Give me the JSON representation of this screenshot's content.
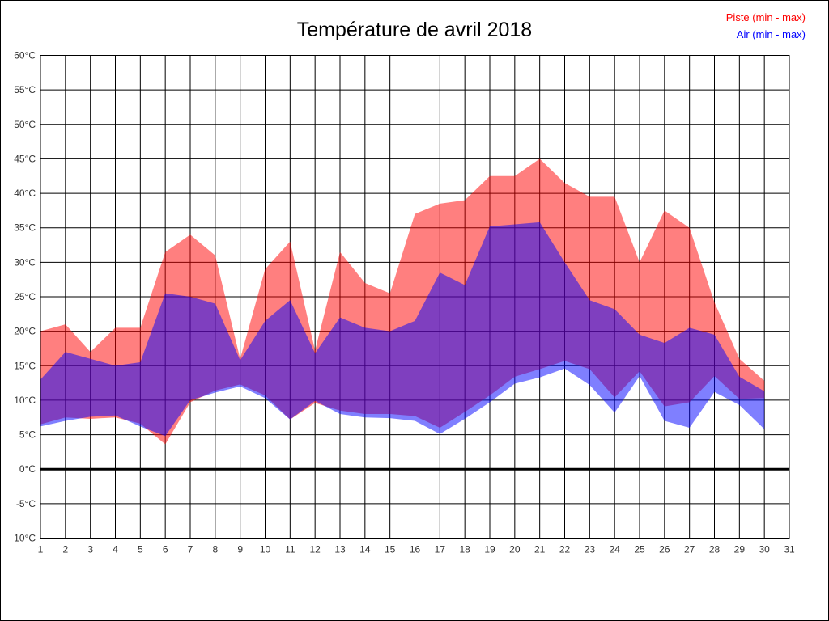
{
  "page": {
    "title": "Température de avril 2018"
  },
  "legend": {
    "piste_label": "Piste (min - max)",
    "air_label": "Air (min - max)",
    "piste_color": "#ff0000",
    "air_color": "#0000ff"
  },
  "chart_data": {
    "type": "area",
    "subtype": "min-max-bands",
    "title": "Température de avril 2018",
    "xlabel": "",
    "ylabel": "",
    "unit": "°C",
    "xlim": [
      1,
      31
    ],
    "ylim": [
      -10,
      60
    ],
    "grid": true,
    "zero_line_bold": true,
    "x_tick_labels": [
      "1",
      "2",
      "3",
      "4",
      "5",
      "6",
      "7",
      "8",
      "9",
      "10",
      "11",
      "12",
      "13",
      "14",
      "15",
      "16",
      "17",
      "18",
      "19",
      "20",
      "21",
      "22",
      "23",
      "24",
      "25",
      "26",
      "27",
      "28",
      "29",
      "30",
      "31"
    ],
    "y_tick_labels": [
      "-10°C",
      "-5°C",
      "0°C",
      "5°C",
      "10°C",
      "15°C",
      "20°C",
      "25°C",
      "30°C",
      "35°C",
      "40°C",
      "45°C",
      "50°C",
      "55°C",
      "60°C"
    ],
    "y_ticks": [
      -10,
      -5,
      0,
      5,
      10,
      15,
      20,
      25,
      30,
      35,
      40,
      45,
      50,
      55,
      60
    ],
    "days": [
      1,
      2,
      3,
      4,
      5,
      6,
      7,
      8,
      9,
      10,
      11,
      12,
      13,
      14,
      15,
      16,
      17,
      18,
      19,
      20,
      21,
      22,
      23,
      24,
      25,
      26,
      27,
      28,
      29,
      30
    ],
    "series": [
      {
        "name": "Piste (min - max)",
        "color": "#ff0000",
        "fill_opacity": 0.5,
        "min": [
          6.5,
          7.5,
          7.3,
          7.5,
          6.6,
          3.6,
          9.7,
          11.4,
          12.3,
          10.7,
          7.2,
          9.6,
          8.5,
          8.0,
          8.0,
          7.7,
          6.0,
          8.3,
          10.7,
          13.4,
          14.5,
          15.7,
          14.5,
          10.4,
          14.2,
          9.1,
          9.7,
          13.5,
          10.2,
          10.3
        ],
        "max": [
          20,
          21,
          17,
          20.5,
          20.5,
          31.5,
          34,
          31,
          16,
          29,
          33,
          17.2,
          31.5,
          27,
          25.5,
          37,
          38.5,
          39,
          42.5,
          42.5,
          45,
          41.5,
          39.5,
          39.5,
          30,
          37.5,
          35,
          24.2,
          16,
          12.8
        ]
      },
      {
        "name": "Air (min - max)",
        "color": "#0000ff",
        "fill_opacity": 0.5,
        "min": [
          6.2,
          7.0,
          7.6,
          7.8,
          6.2,
          4.8,
          10.0,
          11.1,
          12.0,
          10.3,
          7.2,
          9.9,
          8.0,
          7.5,
          7.4,
          7.0,
          5.1,
          7.3,
          9.7,
          12.4,
          13.3,
          14.6,
          12.2,
          8.2,
          13.5,
          7.0,
          6.0,
          11.2,
          9.3,
          5.8
        ],
        "max": [
          13,
          17,
          16,
          15,
          15.5,
          25.5,
          25,
          24,
          15.8,
          21.5,
          24.5,
          16.8,
          22,
          20.5,
          20,
          21.5,
          28.5,
          26.7,
          35.2,
          35.5,
          35.8,
          30,
          24.5,
          23.2,
          19.5,
          18.3,
          20.5,
          19.5,
          13.4,
          11.3
        ]
      }
    ],
    "legend_position": "top-right"
  },
  "axes_style": {
    "grid_color": "#000000",
    "frame_color": "#000000",
    "tick_label_color": "#333333"
  }
}
